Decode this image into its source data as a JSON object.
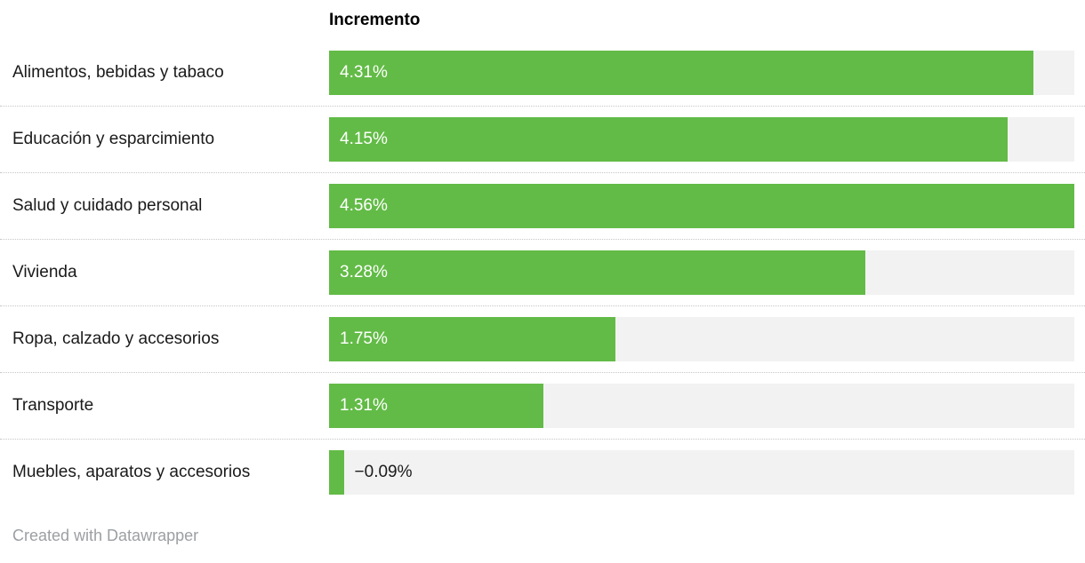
{
  "chart_data": {
    "type": "bar",
    "orientation": "horizontal",
    "column_header": "Incremento",
    "categories": [
      "Alimentos, bebidas y tabaco",
      "Educación y esparcimiento",
      "Salud y cuidado personal",
      "Vivienda",
      "Ropa, calzado y accesorios",
      "Transporte",
      "Muebles, aparatos y accesorios"
    ],
    "values": [
      4.31,
      4.15,
      4.56,
      3.28,
      1.75,
      1.31,
      -0.09
    ],
    "value_labels": [
      "4.31%",
      "4.15%",
      "4.56%",
      "3.28%",
      "1.75%",
      "1.31%",
      "−0.09%"
    ],
    "xlim": [
      0,
      4.56
    ],
    "grid": "dotted-row-separators",
    "legend": "none",
    "bar_color": "#62bb46",
    "track_color": "#f2f2f2"
  },
  "footer": {
    "credit": "Created with Datawrapper"
  }
}
